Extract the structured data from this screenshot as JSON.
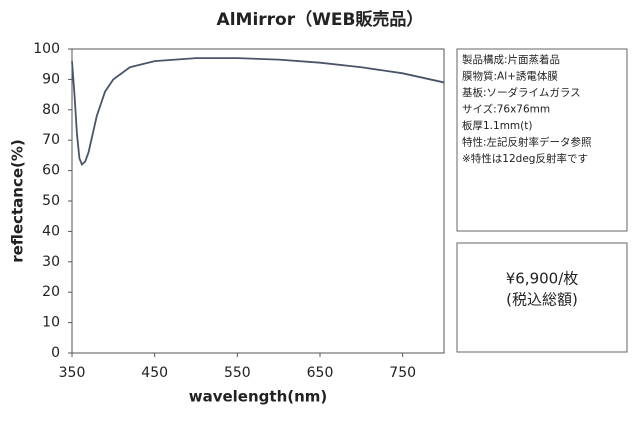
{
  "chart_data": {
    "type": "line",
    "title": "AlMirror（WEB販売品）",
    "x_label": "wavelength(nm)",
    "y_label": "reflectance(%)",
    "x": [
      350,
      353,
      356,
      359,
      362,
      366,
      370,
      375,
      380,
      390,
      400,
      420,
      450,
      500,
      550,
      600,
      650,
      700,
      750,
      800
    ],
    "series": [
      {
        "name": "AlMirror",
        "color": "#4a5568",
        "values": [
          96,
          85,
          72,
          64,
          62,
          63,
          66,
          72,
          78,
          86,
          90,
          94,
          96,
          97,
          97,
          96.5,
          95.5,
          94,
          92,
          89
        ]
      }
    ],
    "xlim": [
      350,
      800
    ],
    "xticks": [
      350,
      450,
      550,
      650,
      750
    ],
    "ylim": [
      0,
      100
    ],
    "yticks": [
      0,
      10,
      20,
      30,
      40,
      50,
      60,
      70,
      80,
      90,
      100
    ],
    "notes": [
      "製品構成:片面蒸着品",
      "膜物質:Al+誘電体膜",
      "基板:ソーダライムガラス",
      "サイズ:76x76mm",
      "板厚1.1mm(t)",
      "特性:左記反射率データ参照",
      "※特性は12deg反射率です"
    ],
    "price": [
      "¥6,900/枚",
      "(税込総額)"
    ]
  }
}
